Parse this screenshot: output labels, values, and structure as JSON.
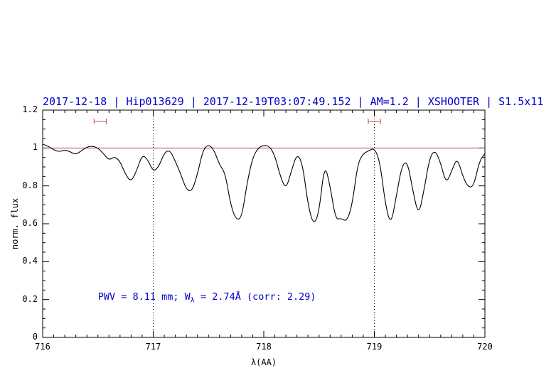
{
  "chart_data": {
    "type": "line",
    "title": "2017-12-18 | Hip013629 | 2017-12-19T03:07:49.152 | AM=1.2 | XSHOOTER | S1.5x11",
    "xlabel": "λ(AA)",
    "ylabel": "norm. flux",
    "xlim": [
      716,
      720
    ],
    "ylim": [
      0,
      1.2
    ],
    "grid": false,
    "x_ticks": [
      716,
      717,
      718,
      719,
      720
    ],
    "x_tick_labels": [
      "716",
      "717",
      "718",
      "719",
      "720"
    ],
    "y_ticks": [
      0,
      0.2,
      0.4,
      0.6,
      0.8,
      1,
      1.2
    ],
    "y_tick_labels": [
      "0",
      "0.2",
      "0.4",
      "0.6",
      "0.8",
      "1",
      "1.2"
    ],
    "colors": {
      "title": "#0000cc",
      "annotation": "#0000cc",
      "spectrum": "#000000",
      "continuum": "#cc4444",
      "frame": "#000000"
    },
    "series": [
      {
        "name": "telluric-spectrum",
        "color": "#000000",
        "x": [
          716.0,
          716.05,
          716.1,
          716.15,
          716.2,
          716.25,
          716.3,
          716.35,
          716.4,
          716.45,
          716.5,
          716.55,
          716.6,
          716.65,
          716.7,
          716.75,
          716.8,
          716.85,
          716.9,
          716.95,
          717.0,
          717.05,
          717.1,
          717.15,
          717.2,
          717.25,
          717.3,
          717.35,
          717.4,
          717.45,
          717.5,
          717.55,
          717.6,
          717.65,
          717.7,
          717.75,
          717.8,
          717.85,
          717.9,
          717.95,
          718.0,
          718.05,
          718.1,
          718.15,
          718.2,
          718.25,
          718.3,
          718.35,
          718.4,
          718.45,
          718.5,
          718.55,
          718.6,
          718.65,
          718.7,
          718.75,
          718.8,
          718.85,
          718.9,
          718.95,
          719.0,
          719.05,
          719.1,
          719.15,
          719.2,
          719.25,
          719.3,
          719.35,
          719.4,
          719.45,
          719.5,
          719.55,
          719.6,
          719.65,
          719.7,
          719.75,
          719.8,
          719.85,
          719.9,
          719.95,
          720.0
        ],
        "y": [
          1.02,
          1.01,
          0.99,
          0.98,
          0.99,
          0.98,
          0.965,
          0.985,
          1.005,
          1.01,
          1.0,
          0.97,
          0.935,
          0.955,
          0.93,
          0.86,
          0.82,
          0.88,
          0.965,
          0.94,
          0.875,
          0.9,
          0.975,
          0.99,
          0.93,
          0.86,
          0.78,
          0.77,
          0.86,
          0.99,
          1.02,
          0.99,
          0.91,
          0.87,
          0.7,
          0.62,
          0.63,
          0.82,
          0.95,
          1.0,
          1.015,
          1.01,
          0.96,
          0.85,
          0.78,
          0.88,
          0.97,
          0.92,
          0.7,
          0.59,
          0.66,
          0.92,
          0.8,
          0.62,
          0.63,
          0.61,
          0.7,
          0.92,
          0.97,
          0.985,
          1.0,
          0.93,
          0.7,
          0.59,
          0.75,
          0.91,
          0.93,
          0.77,
          0.64,
          0.78,
          0.95,
          0.99,
          0.92,
          0.81,
          0.88,
          0.95,
          0.85,
          0.79,
          0.8,
          0.93,
          0.97
        ]
      },
      {
        "name": "continuum",
        "color": "#cc4444",
        "x": [
          716,
          720
        ],
        "y": [
          1,
          1
        ]
      }
    ],
    "vlines": {
      "x": [
        717,
        719
      ],
      "style": "dotted",
      "color": "#000000"
    },
    "range_markers": [
      {
        "x": 716.52,
        "half_width": 0.055,
        "y": 1.14,
        "color": "#cc4444"
      },
      {
        "x": 719.0,
        "half_width": 0.055,
        "y": 1.14,
        "color": "#cc4444"
      }
    ],
    "annotation": {
      "text": "PWV = 8.11 mm; Wλ = 2.74Å (corr: 2.29)",
      "parts": {
        "pre": "PWV = 8.11 mm; W",
        "sub": "λ",
        "post": " = 2.74Å (corr: 2.29)"
      },
      "x": 716.5,
      "y": 0.21,
      "color": "#0000cc"
    }
  }
}
